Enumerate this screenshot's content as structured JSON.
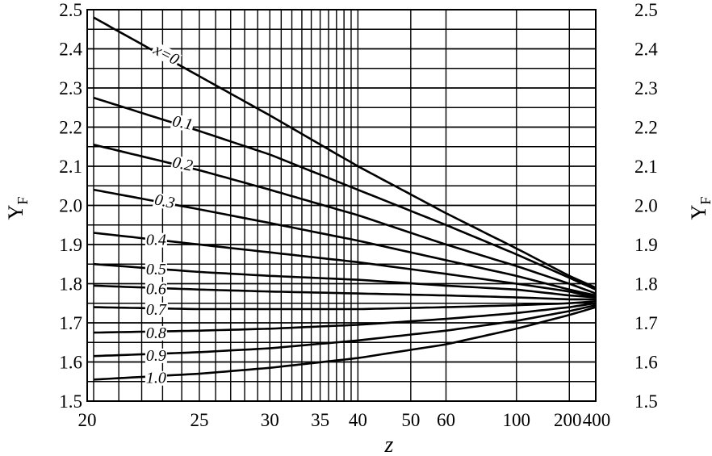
{
  "chart_data": {
    "type": "line",
    "title": "",
    "xlabel": "z",
    "ylabel": "Y",
    "ylabel_sub": "F",
    "ylabel_right": "Y",
    "ylabel_right_sub": "F",
    "x_scale": "reciprocal",
    "xlim": [
      20,
      400
    ],
    "ylim": [
      1.5,
      2.5
    ],
    "grid": true,
    "x_tick_labels": [
      {
        "value": 20,
        "label": "20"
      },
      {
        "value": 25,
        "label": "25"
      },
      {
        "value": 30,
        "label": "30"
      },
      {
        "value": 35,
        "label": "35"
      },
      {
        "value": 40,
        "label": "40"
      },
      {
        "value": 50,
        "label": "50"
      },
      {
        "value": 60,
        "label": "60"
      },
      {
        "value": 100,
        "label": "100"
      },
      {
        "value": 200,
        "label": "200"
      },
      {
        "value": 400,
        "label": "400"
      }
    ],
    "x_grid": [
      20,
      21,
      22,
      23,
      24,
      25,
      26,
      27,
      28,
      29,
      30,
      31,
      32,
      33,
      34,
      35,
      36,
      37,
      38,
      39,
      40,
      50,
      60,
      100,
      200
    ],
    "y_ticks": [
      1.5,
      1.6,
      1.7,
      1.8,
      1.9,
      2.0,
      2.1,
      2.2,
      2.3,
      2.4,
      2.5
    ],
    "y_tick_labels": [
      "1.5",
      "1.6",
      "1.7",
      "1.8",
      "1.9",
      "2.0",
      "2.1",
      "2.2",
      "2.3",
      "2.4",
      "2.5"
    ],
    "y_grid": [
      1.55,
      1.6,
      1.65,
      1.7,
      1.75,
      1.8,
      1.85,
      1.9,
      1.95,
      2.0,
      2.05,
      2.1,
      2.15,
      2.2,
      2.25,
      2.3,
      2.35,
      2.4,
      2.45
    ],
    "series": [
      {
        "name": "x=0",
        "label_z": 22.5,
        "x": [
          20,
          25,
          30,
          40,
          60,
          100,
          200,
          400
        ],
        "values": [
          2.48,
          2.33,
          2.23,
          2.1,
          1.98,
          1.89,
          1.82,
          1.79
        ]
      },
      {
        "name": "0.1",
        "label_z": 23.5,
        "x": [
          20,
          25,
          30,
          40,
          60,
          100,
          200,
          400
        ],
        "values": [
          2.275,
          2.19,
          2.13,
          2.04,
          1.95,
          1.875,
          1.815,
          1.785
        ]
      },
      {
        "name": "0.2",
        "label_z": 23.5,
        "x": [
          20,
          25,
          30,
          40,
          60,
          100,
          200,
          400
        ],
        "values": [
          2.155,
          2.09,
          2.04,
          1.975,
          1.9,
          1.845,
          1.8,
          1.775
        ]
      },
      {
        "name": "0.3",
        "label_z": 22.6,
        "x": [
          20,
          25,
          30,
          40,
          60,
          100,
          200,
          400
        ],
        "values": [
          2.04,
          1.99,
          1.955,
          1.91,
          1.86,
          1.82,
          1.785,
          1.77
        ]
      },
      {
        "name": "0.4",
        "label_z": 22.2,
        "x": [
          20,
          25,
          30,
          40,
          60,
          100,
          200,
          400
        ],
        "values": [
          1.93,
          1.9,
          1.88,
          1.855,
          1.825,
          1.8,
          1.78,
          1.765
        ]
      },
      {
        "name": "0.5",
        "label_z": 22.2,
        "x": [
          20,
          25,
          30,
          40,
          60,
          100,
          200,
          400
        ],
        "values": [
          1.85,
          1.83,
          1.82,
          1.81,
          1.795,
          1.785,
          1.77,
          1.765
        ]
      },
      {
        "name": "0.6",
        "label_z": 22.2,
        "x": [
          20,
          25,
          30,
          40,
          60,
          100,
          200,
          400
        ],
        "values": [
          1.795,
          1.785,
          1.78,
          1.775,
          1.77,
          1.765,
          1.76,
          1.76
        ]
      },
      {
        "name": "0.7",
        "label_z": 22.2,
        "x": [
          20,
          25,
          30,
          40,
          60,
          100,
          200,
          400
        ],
        "values": [
          1.74,
          1.735,
          1.735,
          1.735,
          1.74,
          1.745,
          1.75,
          1.755
        ]
      },
      {
        "name": "0.8",
        "label_z": 22.2,
        "x": [
          20,
          25,
          30,
          40,
          60,
          100,
          200,
          400
        ],
        "values": [
          1.675,
          1.68,
          1.685,
          1.695,
          1.71,
          1.725,
          1.74,
          1.75
        ]
      },
      {
        "name": "0.9",
        "label_z": 22.2,
        "x": [
          20,
          25,
          30,
          40,
          60,
          100,
          200,
          400
        ],
        "values": [
          1.615,
          1.625,
          1.635,
          1.655,
          1.68,
          1.705,
          1.73,
          1.745
        ]
      },
      {
        "name": "1.0",
        "label_z": 22.2,
        "x": [
          20,
          25,
          30,
          40,
          60,
          100,
          200,
          400
        ],
        "values": [
          1.555,
          1.57,
          1.585,
          1.61,
          1.645,
          1.685,
          1.72,
          1.74
        ]
      }
    ]
  }
}
